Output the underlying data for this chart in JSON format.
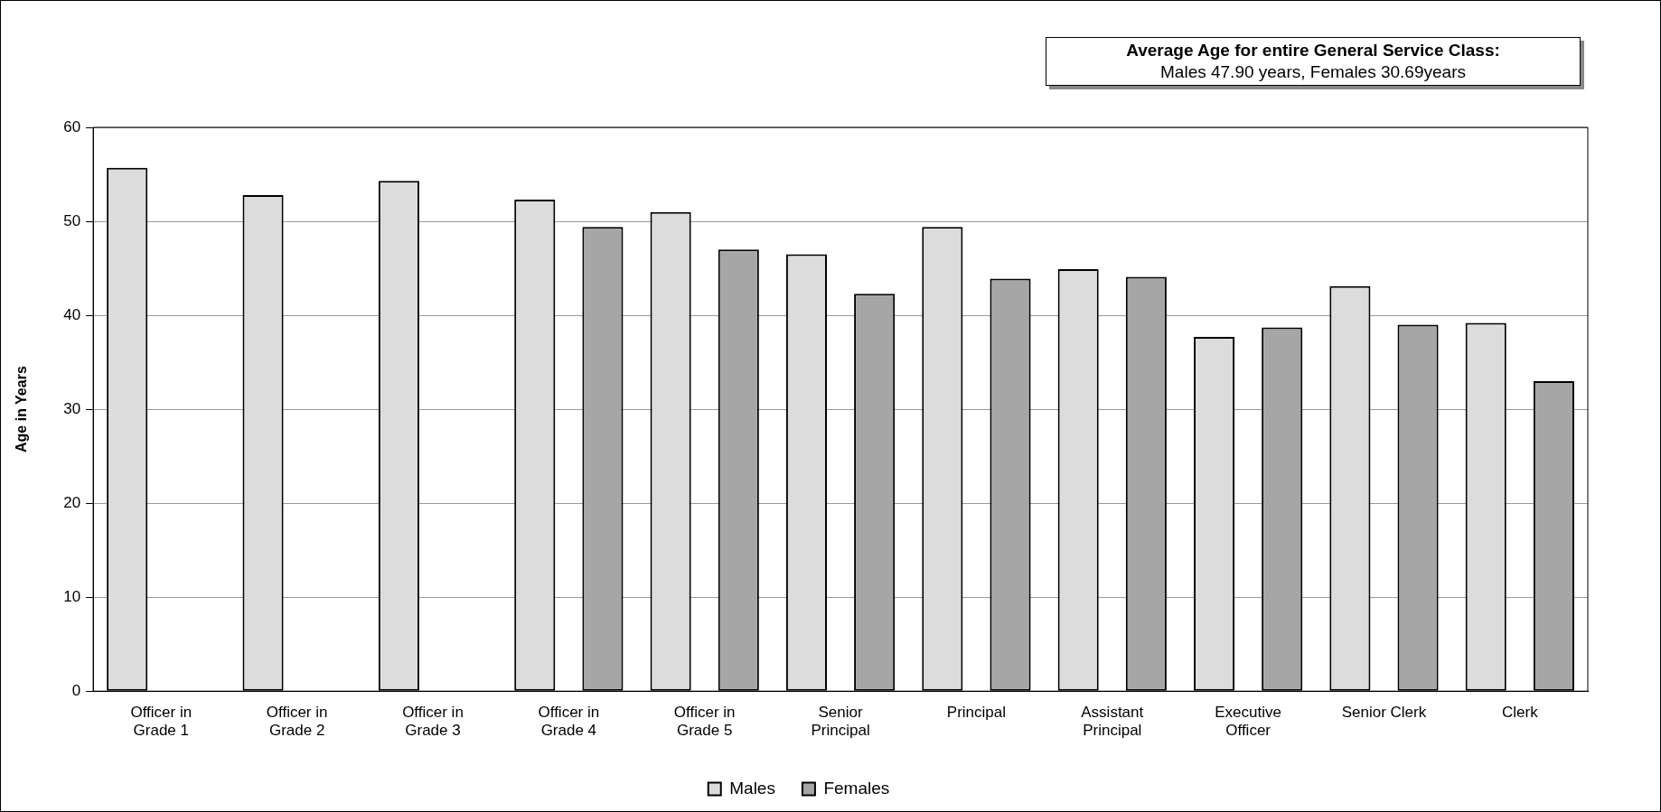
{
  "chart_data": {
    "type": "bar",
    "ylabel": "Age in Years",
    "categories": [
      "Officer in Grade 1",
      "Officer in Grade 2",
      "Officer in Grade 3",
      "Officer in Grade 4",
      "Officer in Grade 5",
      "Senior Principal",
      "Principal",
      "Assistant Principal",
      "Executive Officer",
      "Senior Clerk",
      "Clerk"
    ],
    "series": [
      {
        "name": "Males",
        "color": "#dcdcdc",
        "values": [
          55.7,
          52.8,
          54.3,
          52.3,
          51.0,
          46.5,
          49.4,
          44.9,
          37.7,
          43.1,
          39.2
        ]
      },
      {
        "name": "Females",
        "color": "#a6a6a6",
        "values": [
          null,
          null,
          null,
          49.4,
          47.0,
          42.3,
          43.9,
          44.1,
          38.7,
          39.0,
          33.0
        ]
      }
    ],
    "ylim": [
      0,
      60
    ],
    "yticks": [
      0,
      10,
      20,
      30,
      40,
      50,
      60
    ],
    "grid": "y",
    "legend": "bottom",
    "annotations": [
      "Average Age for entire General Service Class:",
      "Males 47.90 years, Females 30.69years"
    ]
  }
}
